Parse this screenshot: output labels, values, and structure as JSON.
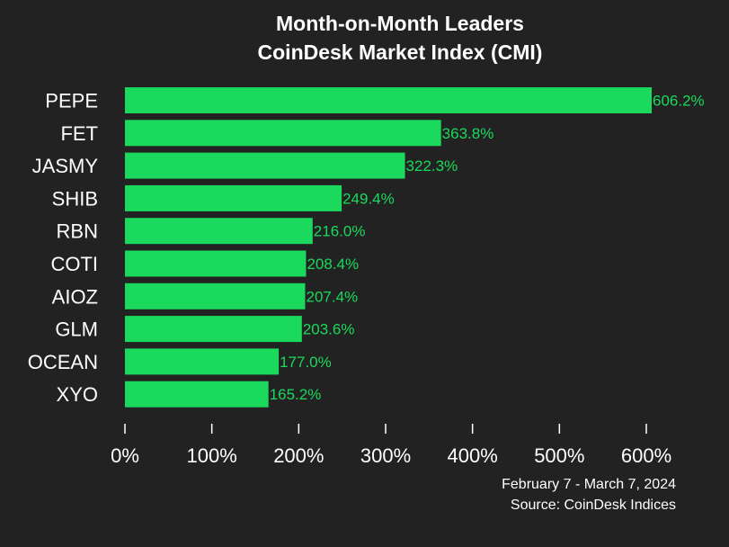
{
  "chart_data": {
    "type": "bar",
    "orientation": "horizontal",
    "title": "Month-on-Month Leaders",
    "subtitle": "CoinDesk Market Index (CMI)",
    "categories": [
      "PEPE",
      "FET",
      "JASMY",
      "SHIB",
      "RBN",
      "COTI",
      "AIOZ",
      "GLM",
      "OCEAN",
      "XYO"
    ],
    "values": [
      606.2,
      363.8,
      322.3,
      249.4,
      216.0,
      208.4,
      207.4,
      203.6,
      177.0,
      165.2
    ],
    "value_labels": [
      "606.2%",
      "363.8%",
      "322.3%",
      "249.4%",
      "216.0%",
      "208.4%",
      "207.4%",
      "203.6%",
      "177.0%",
      "165.2%"
    ],
    "xlim": [
      0,
      600
    ],
    "x_ticks": [
      0,
      100,
      200,
      300,
      400,
      500,
      600
    ],
    "x_tick_labels": [
      "0%",
      "100%",
      "200%",
      "300%",
      "400%",
      "500%",
      "600%"
    ],
    "xlabel": "",
    "ylabel": "",
    "grid": false,
    "legend": "none",
    "date_range": "February 7 - March 7, 2024",
    "source": "Source: CoinDesk Indices",
    "colors": {
      "background": "#222222",
      "bar": "#1ad95c",
      "value_label": "#1ad95c",
      "text": "#ffffff",
      "tick": "#ffffff"
    }
  }
}
